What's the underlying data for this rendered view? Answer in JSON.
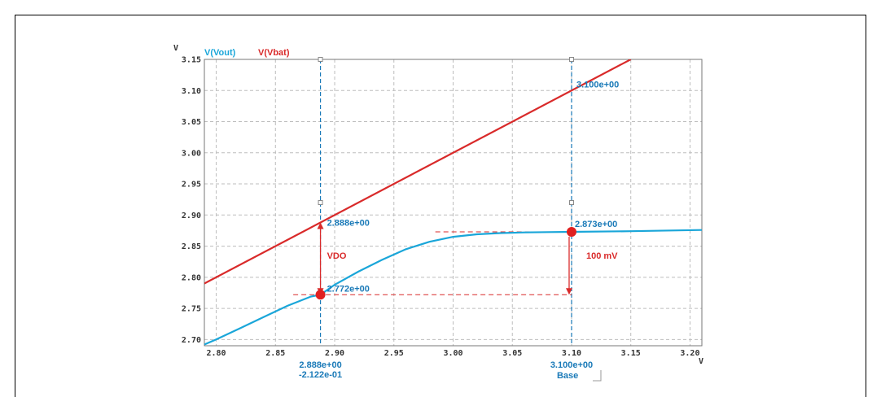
{
  "chart_data": {
    "type": "line",
    "title": "",
    "xlabel": "",
    "ylabel": "",
    "x_unit": "V",
    "y_unit": "V",
    "xlim": [
      2.79,
      3.21
    ],
    "ylim": [
      2.69,
      3.15
    ],
    "x_ticks": [
      "2.80",
      "2.85",
      "2.90",
      "2.95",
      "3.00",
      "3.05",
      "3.10",
      "3.15",
      "3.20"
    ],
    "y_ticks": [
      "2.70",
      "2.75",
      "2.80",
      "2.85",
      "2.90",
      "2.95",
      "3.00",
      "3.05",
      "3.10",
      "3.15"
    ],
    "grid": true,
    "legend_position": "top-left",
    "series": [
      {
        "name": "V(Vout)",
        "color": "#1aa6d9",
        "x": [
          2.79,
          2.8,
          2.82,
          2.84,
          2.86,
          2.88,
          2.888,
          2.9,
          2.92,
          2.94,
          2.96,
          2.98,
          3.0,
          3.02,
          3.04,
          3.06,
          3.08,
          3.1,
          3.15,
          3.21
        ],
        "y": [
          2.692,
          2.7,
          2.718,
          2.736,
          2.754,
          2.769,
          2.772,
          2.788,
          2.809,
          2.828,
          2.845,
          2.857,
          2.865,
          2.869,
          2.871,
          2.872,
          2.8725,
          2.873,
          2.874,
          2.876
        ]
      },
      {
        "name": "V(Vbat)",
        "color": "#d92a2a",
        "x": [
          2.79,
          3.15
        ],
        "y": [
          2.79,
          3.15
        ]
      }
    ],
    "cursors": [
      {
        "x": 2.888,
        "color": "#1a7ab8"
      },
      {
        "x": 3.1,
        "color": "#1a7ab8"
      }
    ],
    "markers": [
      {
        "x": 2.888,
        "y": 2.772,
        "color": "#e02020"
      },
      {
        "x": 3.1,
        "y": 2.873,
        "color": "#e02020"
      }
    ],
    "annotations": {
      "vbat_at_cursor1": "2.888e+00",
      "vout_at_cursor1": "2.772e+00",
      "cursor1_x": "2.888e+00",
      "cursor1_delta": "-2.122e-01",
      "vbat_at_cursor2": "3.100e+00",
      "vout_at_cursor2": "2.873e+00",
      "cursor2_x": "3.100e+00",
      "cursor2_base": "Base",
      "vdo_label": "VDO",
      "drop_label": "100 mV"
    }
  }
}
